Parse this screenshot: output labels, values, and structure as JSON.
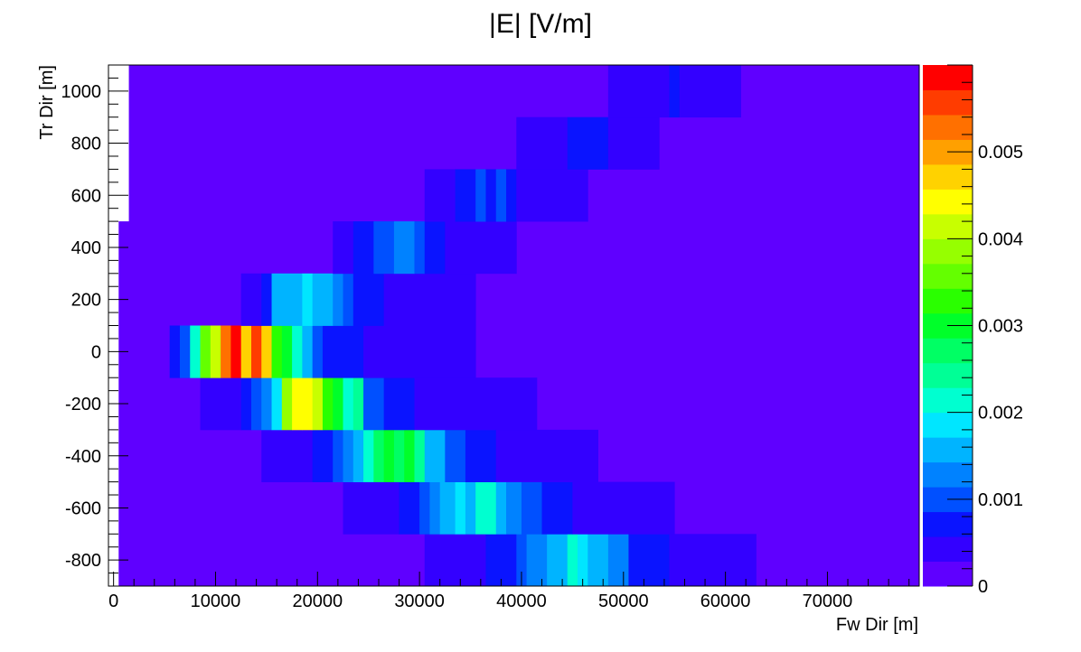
{
  "chart_data": {
    "type": "heatmap",
    "title": "|E| [V/m]",
    "xlabel": "Fw Dir [m]",
    "ylabel": "Tr Dir [m]",
    "xlim": [
      -500,
      79000
    ],
    "ylim": [
      -900,
      1100
    ],
    "x_ticks": [
      0,
      10000,
      20000,
      30000,
      40000,
      50000,
      60000,
      70000
    ],
    "x_tick_labels": [
      "0",
      "10000",
      "20000",
      "30000",
      "40000",
      "50000",
      "60000",
      "70000"
    ],
    "y_ticks": [
      -800,
      -600,
      -400,
      -200,
      0,
      200,
      400,
      600,
      800,
      1000
    ],
    "y_tick_labels": [
      "-800",
      "-600",
      "-400",
      "-200",
      "0",
      "200",
      "400",
      "600",
      "800",
      "1000"
    ],
    "grid": false,
    "background_value": 0.00015,
    "colorbar": {
      "min": 0,
      "max": 0.006,
      "ticks": [
        0,
        0.001,
        0.002,
        0.003,
        0.004,
        0.005
      ],
      "tick_labels": [
        "0",
        "0.001",
        "0.002",
        "0.003",
        "0.004",
        "0.005"
      ],
      "colors": [
        "#5f00ff",
        "#3300ff",
        "#0a14ff",
        "#0050ff",
        "#0082ff",
        "#00b4ff",
        "#00e6ff",
        "#00ffd0",
        "#00ff96",
        "#00ff64",
        "#00ff2a",
        "#2aff00",
        "#64ff00",
        "#96ff00",
        "#c8ff00",
        "#ffff00",
        "#ffd200",
        "#ffa000",
        "#ff7000",
        "#ff3c00",
        "#ff0000"
      ]
    },
    "row_edges": [
      -900,
      -700,
      -500,
      -300,
      -100,
      100,
      300,
      500,
      700,
      900,
      1100
    ],
    "rows": [
      {
        "y": -800,
        "cells": [
          {
            "x0": 30500,
            "x1": 36500,
            "v": 0.0004
          },
          {
            "x0": 36500,
            "x1": 39500,
            "v": 0.0008
          },
          {
            "x0": 39500,
            "x1": 40500,
            "v": 0.0011
          },
          {
            "x0": 40500,
            "x1": 42500,
            "v": 0.0014
          },
          {
            "x0": 42500,
            "x1": 44500,
            "v": 0.0017
          },
          {
            "x0": 44500,
            "x1": 45500,
            "v": 0.002
          },
          {
            "x0": 45500,
            "x1": 46500,
            "v": 0.0018
          },
          {
            "x0": 46500,
            "x1": 48500,
            "v": 0.0016
          },
          {
            "x0": 48500,
            "x1": 50500,
            "v": 0.0013
          },
          {
            "x0": 50500,
            "x1": 54500,
            "v": 0.0008
          },
          {
            "x0": 54500,
            "x1": 63000,
            "v": 0.0004
          }
        ]
      },
      {
        "y": -600,
        "cells": [
          {
            "x0": 22500,
            "x1": 28000,
            "v": 0.0004
          },
          {
            "x0": 28000,
            "x1": 30000,
            "v": 0.0008
          },
          {
            "x0": 30000,
            "x1": 31000,
            "v": 0.0011
          },
          {
            "x0": 31000,
            "x1": 32000,
            "v": 0.0013
          },
          {
            "x0": 32000,
            "x1": 33500,
            "v": 0.0016
          },
          {
            "x0": 33500,
            "x1": 34500,
            "v": 0.0019
          },
          {
            "x0": 34500,
            "x1": 35500,
            "v": 0.0017
          },
          {
            "x0": 35500,
            "x1": 37500,
            "v": 0.002
          },
          {
            "x0": 37500,
            "x1": 38500,
            "v": 0.0017
          },
          {
            "x0": 38500,
            "x1": 40000,
            "v": 0.0014
          },
          {
            "x0": 40000,
            "x1": 42000,
            "v": 0.0011
          },
          {
            "x0": 42000,
            "x1": 45000,
            "v": 0.0008
          },
          {
            "x0": 45000,
            "x1": 55000,
            "v": 0.0004
          }
        ]
      },
      {
        "y": -400,
        "cells": [
          {
            "x0": 14500,
            "x1": 19500,
            "v": 0.0004
          },
          {
            "x0": 19500,
            "x1": 21500,
            "v": 0.0008
          },
          {
            "x0": 21500,
            "x1": 22500,
            "v": 0.001
          },
          {
            "x0": 22500,
            "x1": 23500,
            "v": 0.0013
          },
          {
            "x0": 23500,
            "x1": 24500,
            "v": 0.0016
          },
          {
            "x0": 24500,
            "x1": 25500,
            "v": 0.0022
          },
          {
            "x0": 25500,
            "x1": 26500,
            "v": 0.0026
          },
          {
            "x0": 26500,
            "x1": 27500,
            "v": 0.0029
          },
          {
            "x0": 27500,
            "x1": 28500,
            "v": 0.0026
          },
          {
            "x0": 28500,
            "x1": 29500,
            "v": 0.0031
          },
          {
            "x0": 29500,
            "x1": 30500,
            "v": 0.0023
          },
          {
            "x0": 30500,
            "x1": 32500,
            "v": 0.0016
          },
          {
            "x0": 32500,
            "x1": 34500,
            "v": 0.0011
          },
          {
            "x0": 34500,
            "x1": 37500,
            "v": 0.0008
          },
          {
            "x0": 37500,
            "x1": 47500,
            "v": 0.0004
          }
        ]
      },
      {
        "y": -200,
        "cells": [
          {
            "x0": 8500,
            "x1": 12500,
            "v": 0.0004
          },
          {
            "x0": 12500,
            "x1": 13500,
            "v": 0.0008
          },
          {
            "x0": 13500,
            "x1": 14500,
            "v": 0.0011
          },
          {
            "x0": 14500,
            "x1": 15500,
            "v": 0.0014
          },
          {
            "x0": 15500,
            "x1": 16500,
            "v": 0.0019
          },
          {
            "x0": 16500,
            "x1": 17500,
            "v": 0.0039
          },
          {
            "x0": 17500,
            "x1": 18500,
            "v": 0.0045
          },
          {
            "x0": 18500,
            "x1": 19500,
            "v": 0.0044
          },
          {
            "x0": 19500,
            "x1": 20500,
            "v": 0.0041
          },
          {
            "x0": 20500,
            "x1": 21500,
            "v": 0.0034
          },
          {
            "x0": 21500,
            "x1": 22500,
            "v": 0.0031
          },
          {
            "x0": 22500,
            "x1": 23500,
            "v": 0.002
          },
          {
            "x0": 23500,
            "x1": 24500,
            "v": 0.0025
          },
          {
            "x0": 24500,
            "x1": 26500,
            "v": 0.0011
          },
          {
            "x0": 26500,
            "x1": 29500,
            "v": 0.0008
          },
          {
            "x0": 29500,
            "x1": 41500,
            "v": 0.0004
          }
        ]
      },
      {
        "y": 0,
        "cells": [
          {
            "x0": 5500,
            "x1": 6500,
            "v": 0.0007
          },
          {
            "x0": 6500,
            "x1": 7500,
            "v": 0.0011
          },
          {
            "x0": 7500,
            "x1": 8500,
            "v": 0.0022
          },
          {
            "x0": 8500,
            "x1": 9500,
            "v": 0.0036
          },
          {
            "x0": 9500,
            "x1": 10500,
            "v": 0.0041
          },
          {
            "x0": 10500,
            "x1": 11500,
            "v": 0.0052
          },
          {
            "x0": 11500,
            "x1": 12500,
            "v": 0.0059
          },
          {
            "x0": 12500,
            "x1": 13500,
            "v": 0.0046
          },
          {
            "x0": 13500,
            "x1": 14500,
            "v": 0.0056
          },
          {
            "x0": 14500,
            "x1": 15500,
            "v": 0.0046
          },
          {
            "x0": 15500,
            "x1": 16500,
            "v": 0.0034
          },
          {
            "x0": 16500,
            "x1": 17500,
            "v": 0.0029
          },
          {
            "x0": 17500,
            "x1": 18500,
            "v": 0.0022
          },
          {
            "x0": 18500,
            "x1": 19500,
            "v": 0.0016
          },
          {
            "x0": 19500,
            "x1": 20500,
            "v": 0.0011
          },
          {
            "x0": 20500,
            "x1": 24500,
            "v": 0.0008
          },
          {
            "x0": 24500,
            "x1": 35500,
            "v": 0.0004
          }
        ]
      },
      {
        "y": 200,
        "cells": [
          {
            "x0": 12500,
            "x1": 14500,
            "v": 0.0004
          },
          {
            "x0": 14500,
            "x1": 15500,
            "v": 0.0008
          },
          {
            "x0": 15500,
            "x1": 18500,
            "v": 0.0016
          },
          {
            "x0": 18500,
            "x1": 19500,
            "v": 0.0019
          },
          {
            "x0": 19500,
            "x1": 21500,
            "v": 0.0016
          },
          {
            "x0": 21500,
            "x1": 22500,
            "v": 0.0014
          },
          {
            "x0": 22500,
            "x1": 23500,
            "v": 0.0011
          },
          {
            "x0": 23500,
            "x1": 26500,
            "v": 0.0008
          },
          {
            "x0": 26500,
            "x1": 35500,
            "v": 0.0004
          }
        ]
      },
      {
        "y": 400,
        "cells": [
          {
            "x0": 21500,
            "x1": 23500,
            "v": 0.0004
          },
          {
            "x0": 23500,
            "x1": 25500,
            "v": 0.0008
          },
          {
            "x0": 25500,
            "x1": 27500,
            "v": 0.0011
          },
          {
            "x0": 27500,
            "x1": 29500,
            "v": 0.0013
          },
          {
            "x0": 29500,
            "x1": 30500,
            "v": 0.0011
          },
          {
            "x0": 30500,
            "x1": 32500,
            "v": 0.0008
          },
          {
            "x0": 32500,
            "x1": 39500,
            "v": 0.0004
          }
        ]
      },
      {
        "y": 600,
        "cells": [
          {
            "x0": 30500,
            "x1": 33500,
            "v": 0.0004
          },
          {
            "x0": 33500,
            "x1": 35500,
            "v": 0.0008
          },
          {
            "x0": 35500,
            "x1": 36500,
            "v": 0.0011
          },
          {
            "x0": 36500,
            "x1": 37500,
            "v": 0.0008
          },
          {
            "x0": 37500,
            "x1": 38500,
            "v": 0.0011
          },
          {
            "x0": 38500,
            "x1": 39500,
            "v": 0.0008
          },
          {
            "x0": 39500,
            "x1": 46500,
            "v": 0.0004
          }
        ]
      },
      {
        "y": 800,
        "cells": [
          {
            "x0": 39500,
            "x1": 44500,
            "v": 0.0004
          },
          {
            "x0": 44500,
            "x1": 48500,
            "v": 0.0008
          },
          {
            "x0": 48500,
            "x1": 53500,
            "v": 0.0004
          }
        ]
      },
      {
        "y": 1000,
        "cells": [
          {
            "x0": 48500,
            "x1": 54500,
            "v": 0.0004
          },
          {
            "x0": 54500,
            "x1": 55500,
            "v": 0.0008
          },
          {
            "x0": 55500,
            "x1": 61500,
            "v": 0.0004
          }
        ]
      }
    ],
    "empty_cells": [
      {
        "x0": -500,
        "x1": 1500,
        "y0": 500,
        "y1": 1100
      },
      {
        "x0": -500,
        "x1": 500,
        "y0": -900,
        "y1": 500
      }
    ]
  }
}
